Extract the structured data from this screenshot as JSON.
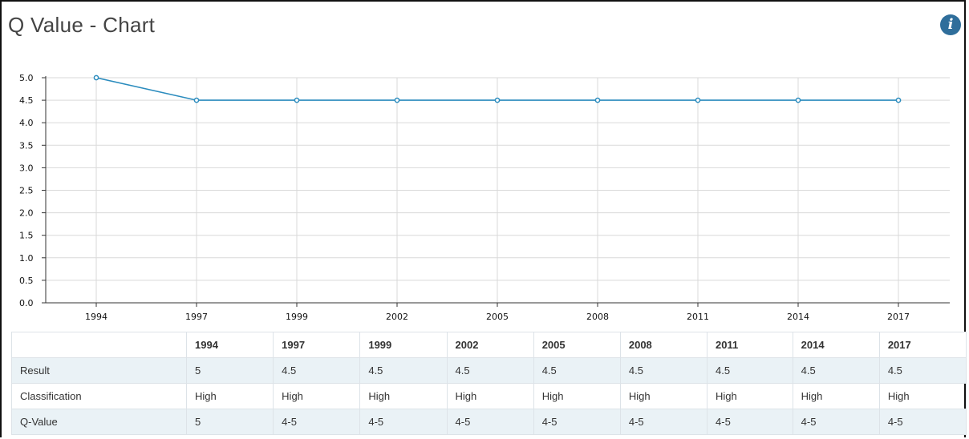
{
  "title": "Q Value - Chart",
  "icons": {
    "info": "info-icon"
  },
  "colors": {
    "line": "#2b8cbe",
    "grid": "#d9d9d9",
    "row_alt": "#eaf2f6"
  },
  "chart_data": {
    "type": "line",
    "title": "Q Value - Chart",
    "x": [
      "1994",
      "1997",
      "1999",
      "2002",
      "2005",
      "2008",
      "2011",
      "2014",
      "2017"
    ],
    "series": [
      {
        "values": [
          5,
          4.5,
          4.5,
          4.5,
          4.5,
          4.5,
          4.5,
          4.5,
          4.5
        ]
      }
    ],
    "ylim": [
      0,
      5
    ],
    "yticks": [
      "0.0",
      "0.5",
      "1.0",
      "1.5",
      "2.0",
      "2.5",
      "3.0",
      "3.5",
      "4.0",
      "4.5",
      "5.0"
    ],
    "grid": true,
    "xlabel": "",
    "ylabel": ""
  },
  "table": {
    "header": [
      "",
      "1994",
      "1997",
      "1999",
      "2002",
      "2005",
      "2008",
      "2011",
      "2014",
      "2017"
    ],
    "rows": [
      {
        "label": "Result",
        "cells": [
          "5",
          "4.5",
          "4.5",
          "4.5",
          "4.5",
          "4.5",
          "4.5",
          "4.5",
          "4.5"
        ]
      },
      {
        "label": "Classification",
        "cells": [
          "High",
          "High",
          "High",
          "High",
          "High",
          "High",
          "High",
          "High",
          "High"
        ]
      },
      {
        "label": "Q-Value",
        "cells": [
          "5",
          "4-5",
          "4-5",
          "4-5",
          "4-5",
          "4-5",
          "4-5",
          "4-5",
          "4-5"
        ]
      }
    ]
  }
}
